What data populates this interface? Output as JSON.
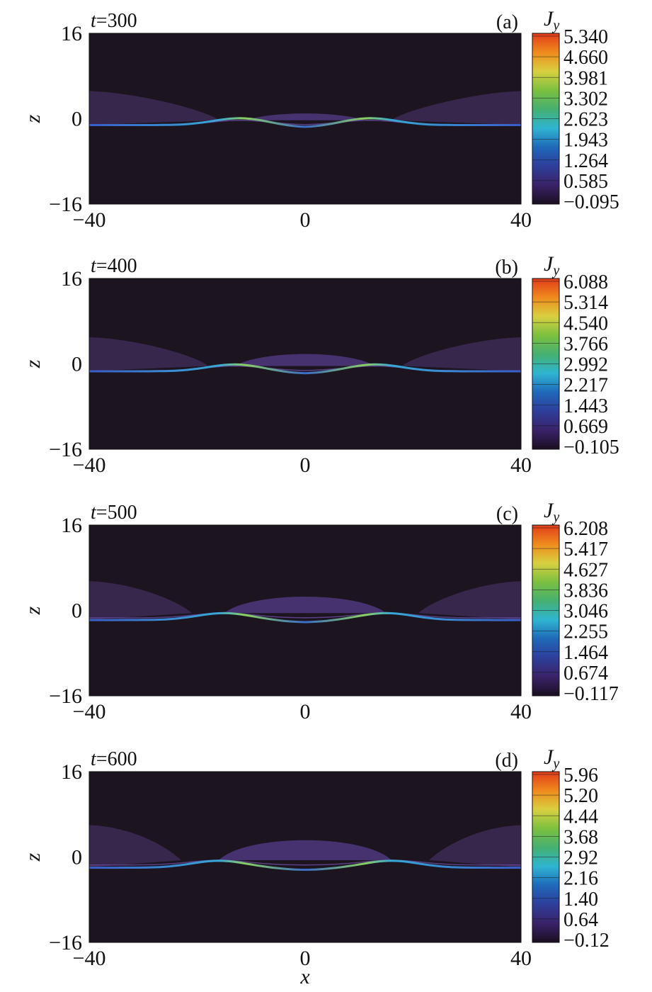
{
  "chart_data": [
    {
      "type": "heatmap",
      "panel_label": "(a)",
      "time_label": "300",
      "xlabel": "",
      "ylabel": "z",
      "xlim": [
        -40,
        40
      ],
      "ylim": [
        -16,
        16
      ],
      "x_ticks": [
        "−40",
        "0",
        "40"
      ],
      "y_ticks": [
        "16",
        "0",
        "−16"
      ],
      "colorbar": {
        "label": "J",
        "label_sub": "y",
        "ticks": [
          "5.340",
          "4.660",
          "3.981",
          "3.302",
          "2.623",
          "1.943",
          "1.264",
          "0.585",
          "−0.095"
        ],
        "min": -0.095,
        "max": 5.34
      },
      "sheet": {
        "z_center": -1.2,
        "z_upper_center": -0.3,
        "bulge_height": 1.4,
        "bulge_half_width": 8,
        "lobe_height": 5.2,
        "lobe_inner_x": 22,
        "peak_x": 12
      }
    },
    {
      "type": "heatmap",
      "panel_label": "(b)",
      "time_label": "400",
      "xlabel": "",
      "ylabel": "z",
      "xlim": [
        -40,
        40
      ],
      "ylim": [
        -16,
        16
      ],
      "x_ticks": [
        "−40",
        "0",
        "40"
      ],
      "y_ticks": [
        "16",
        "0",
        "−16"
      ],
      "colorbar": {
        "label": "J",
        "label_sub": "y",
        "ticks": [
          "6.088",
          "5.314",
          "4.540",
          "3.766",
          "2.992",
          "2.217",
          "1.443",
          "0.669",
          "−0.105"
        ],
        "min": -0.105,
        "max": 6.088
      },
      "sheet": {
        "z_center": -1.4,
        "z_upper_center": -0.4,
        "bulge_height": 2.6,
        "bulge_half_width": 10,
        "lobe_height": 5.0,
        "lobe_inner_x": 24,
        "peak_x": 13
      }
    },
    {
      "type": "heatmap",
      "panel_label": "(c)",
      "time_label": "500",
      "xlabel": "",
      "ylabel": "z",
      "xlim": [
        -40,
        40
      ],
      "ylim": [
        -16,
        16
      ],
      "x_ticks": [
        "−40",
        "0",
        "40"
      ],
      "y_ticks": [
        "16",
        "0",
        "−16"
      ],
      "colorbar": {
        "label": "J",
        "label_sub": "y",
        "ticks": [
          "6.208",
          "5.417",
          "4.627",
          "3.836",
          "3.046",
          "2.255",
          "1.464",
          "0.674",
          "−0.117"
        ],
        "min": -0.117,
        "max": 6.208
      },
      "sheet": {
        "z_center": -1.8,
        "z_upper_center": -0.5,
        "bulge_height": 3.6,
        "bulge_half_width": 12,
        "lobe_height": 5.5,
        "lobe_inner_x": 27,
        "peak_x": 15
      }
    },
    {
      "type": "heatmap",
      "panel_label": "(d)",
      "time_label": "600",
      "xlabel": "x",
      "ylabel": "z",
      "xlim": [
        -40,
        40
      ],
      "ylim": [
        -16,
        16
      ],
      "x_ticks": [
        "−40",
        "0",
        "40"
      ],
      "y_ticks": [
        "16",
        "0",
        "−16"
      ],
      "colorbar": {
        "label": "J",
        "label_sub": "y",
        "ticks": [
          "5.96",
          "5.20",
          "4.44",
          "3.68",
          "2.92",
          "2.16",
          "1.40",
          "0.64",
          "−0.12"
        ],
        "min": -0.12,
        "max": 5.96
      },
      "sheet": {
        "z_center": -2.0,
        "z_upper_center": -0.6,
        "bulge_height": 4.4,
        "bulge_half_width": 13,
        "lobe_height": 6.0,
        "lobe_inner_x": 29,
        "peak_x": 16
      }
    }
  ]
}
